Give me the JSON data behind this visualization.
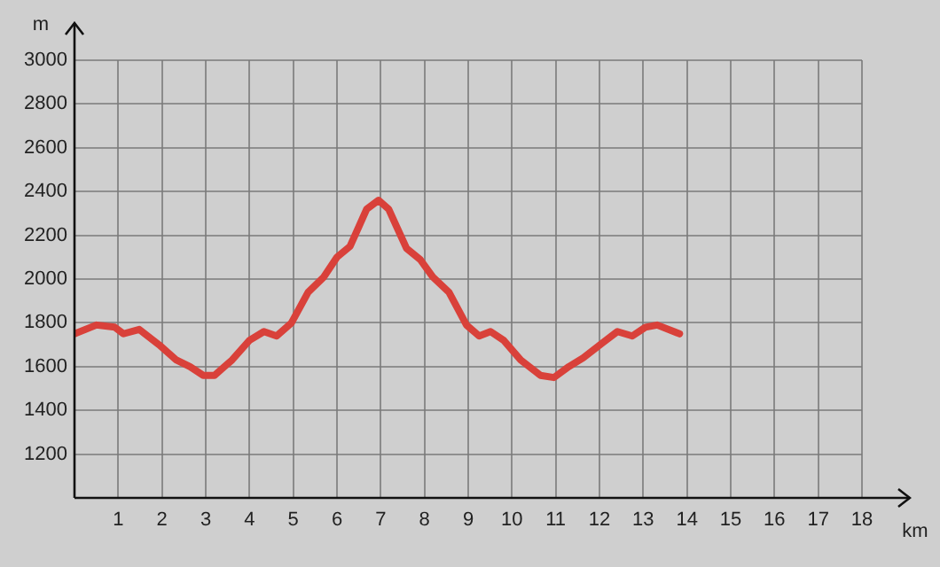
{
  "chart_data": {
    "type": "line",
    "xlabel": "km",
    "ylabel": "m",
    "x": [
      0,
      0.5,
      0.92,
      1.12,
      1.48,
      1.93,
      2.33,
      2.64,
      2.94,
      3.2,
      3.6,
      4.0,
      4.33,
      4.62,
      4.96,
      5.34,
      5.7,
      6.0,
      6.3,
      6.68,
      6.95,
      7.18,
      7.59,
      7.9,
      8.19,
      8.56,
      8.96,
      9.25,
      9.51,
      9.81,
      10.2,
      10.65,
      10.96,
      11.3,
      11.63,
      12.08,
      12.41,
      12.75,
      13.05,
      13.32,
      13.83
    ],
    "series": [
      {
        "color": "#d9413a",
        "values": [
          1750,
          1790,
          1780,
          1750,
          1770,
          1700,
          1630,
          1600,
          1560,
          1560,
          1630,
          1720,
          1760,
          1740,
          1800,
          1940,
          2010,
          2100,
          2150,
          2320,
          2360,
          2320,
          2140,
          2090,
          2010,
          1940,
          1790,
          1740,
          1760,
          1720,
          1630,
          1560,
          1550,
          1600,
          1640,
          1710,
          1760,
          1740,
          1780,
          1790,
          1750
        ]
      }
    ],
    "xlim": [
      0,
      18
    ],
    "xticks": [
      1,
      2,
      3,
      4,
      5,
      6,
      7,
      8,
      9,
      10,
      11,
      12,
      13,
      14,
      15,
      16,
      17,
      18
    ],
    "ylim": [
      1000,
      3000
    ],
    "yticks": [
      1200,
      1400,
      1600,
      1800,
      2000,
      2200,
      2400,
      2600,
      2800,
      3000
    ],
    "grid": true,
    "legend": false,
    "marker": "none",
    "line_style": "solid"
  }
}
